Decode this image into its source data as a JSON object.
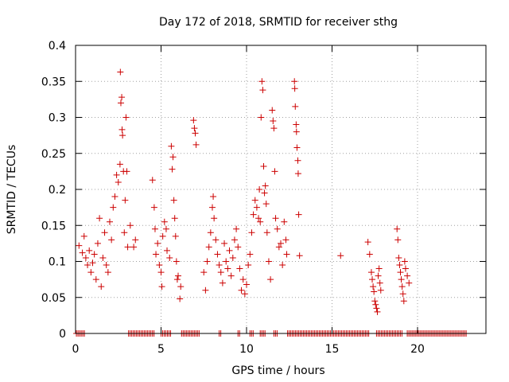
{
  "chart_data": {
    "type": "scatter",
    "title": "Day 172 of 2018, SRMTID for receiver sthg",
    "xlabel": "GPS time / hours",
    "ylabel": "SRMTID / TECUs",
    "xlim": [
      0,
      24
    ],
    "ylim": [
      0,
      0.4
    ],
    "x_ticks": [
      0,
      5,
      10,
      15,
      20
    ],
    "x_tick_labels": [
      "0",
      "5",
      "10",
      "15",
      "20"
    ],
    "y_ticks": [
      0,
      0.05,
      0.1,
      0.15,
      0.2,
      0.25,
      0.3,
      0.35,
      0.4
    ],
    "y_tick_labels": [
      "0",
      "0.05",
      "0.1",
      "0.15",
      "0.2",
      "0.25",
      "0.3",
      "0.35",
      "0.4"
    ],
    "grid": true,
    "marker": "plus",
    "color": "#cc0000",
    "series": [
      {
        "name": "SRMTID",
        "points": [
          [
            0.2,
            0.122
          ],
          [
            0.4,
            0.112
          ],
          [
            0.5,
            0.135
          ],
          [
            0.6,
            0.105
          ],
          [
            0.7,
            0.095
          ],
          [
            0.8,
            0.115
          ],
          [
            0.9,
            0.085
          ],
          [
            1.0,
            0.098
          ],
          [
            1.1,
            0.11
          ],
          [
            1.2,
            0.075
          ],
          [
            1.3,
            0.125
          ],
          [
            1.4,
            0.16
          ],
          [
            1.5,
            0.065
          ],
          [
            1.6,
            0.105
          ],
          [
            1.7,
            0.14
          ],
          [
            1.8,
            0.095
          ],
          [
            1.9,
            0.085
          ],
          [
            2.0,
            0.155
          ],
          [
            2.1,
            0.13
          ],
          [
            2.2,
            0.175
          ],
          [
            2.3,
            0.19
          ],
          [
            2.4,
            0.22
          ],
          [
            2.5,
            0.21
          ],
          [
            2.6,
            0.235
          ],
          [
            2.62,
            0.363
          ],
          [
            2.65,
            0.32
          ],
          [
            2.7,
            0.328
          ],
          [
            2.72,
            0.283
          ],
          [
            2.75,
            0.275
          ],
          [
            2.8,
            0.225
          ],
          [
            2.85,
            0.14
          ],
          [
            2.9,
            0.185
          ],
          [
            2.95,
            0.3
          ],
          [
            3.0,
            0.225
          ],
          [
            3.05,
            0.12
          ],
          [
            3.2,
            0.15
          ],
          [
            3.4,
            0.12
          ],
          [
            3.5,
            0.13
          ],
          [
            4.5,
            0.213
          ],
          [
            4.6,
            0.175
          ],
          [
            4.65,
            0.145
          ],
          [
            4.7,
            0.11
          ],
          [
            4.8,
            0.125
          ],
          [
            4.9,
            0.095
          ],
          [
            5.0,
            0.085
          ],
          [
            5.05,
            0.065
          ],
          [
            5.1,
            0.135
          ],
          [
            5.2,
            0.155
          ],
          [
            5.3,
            0.145
          ],
          [
            5.35,
            0.115
          ],
          [
            5.5,
            0.105
          ],
          [
            5.6,
            0.26
          ],
          [
            5.65,
            0.228
          ],
          [
            5.7,
            0.245
          ],
          [
            5.75,
            0.185
          ],
          [
            5.8,
            0.16
          ],
          [
            5.85,
            0.135
          ],
          [
            5.9,
            0.1
          ],
          [
            5.95,
            0.075
          ],
          [
            6.0,
            0.08
          ],
          [
            6.1,
            0.048
          ],
          [
            6.15,
            0.065
          ],
          [
            6.9,
            0.296
          ],
          [
            6.95,
            0.285
          ],
          [
            7.0,
            0.278
          ],
          [
            7.05,
            0.262
          ],
          [
            7.5,
            0.085
          ],
          [
            7.6,
            0.06
          ],
          [
            7.7,
            0.1
          ],
          [
            7.8,
            0.12
          ],
          [
            7.9,
            0.14
          ],
          [
            8.0,
            0.175
          ],
          [
            8.05,
            0.19
          ],
          [
            8.1,
            0.16
          ],
          [
            8.2,
            0.13
          ],
          [
            8.3,
            0.11
          ],
          [
            8.4,
            0.095
          ],
          [
            8.5,
            0.085
          ],
          [
            8.6,
            0.07
          ],
          [
            8.7,
            0.125
          ],
          [
            8.8,
            0.1
          ],
          [
            8.9,
            0.09
          ],
          [
            9.0,
            0.115
          ],
          [
            9.1,
            0.08
          ],
          [
            9.2,
            0.105
          ],
          [
            9.3,
            0.13
          ],
          [
            9.4,
            0.145
          ],
          [
            9.5,
            0.12
          ],
          [
            9.6,
            0.09
          ],
          [
            9.7,
            0.06
          ],
          [
            9.8,
            0.075
          ],
          [
            9.9,
            0.055
          ],
          [
            10.0,
            0.068
          ],
          [
            10.1,
            0.095
          ],
          [
            10.2,
            0.11
          ],
          [
            10.3,
            0.14
          ],
          [
            10.4,
            0.165
          ],
          [
            10.5,
            0.185
          ],
          [
            10.6,
            0.175
          ],
          [
            10.7,
            0.16
          ],
          [
            10.75,
            0.2
          ],
          [
            10.8,
            0.155
          ],
          [
            10.85,
            0.3
          ],
          [
            10.9,
            0.35
          ],
          [
            10.95,
            0.338
          ],
          [
            11.0,
            0.232
          ],
          [
            11.05,
            0.195
          ],
          [
            11.1,
            0.205
          ],
          [
            11.15,
            0.18
          ],
          [
            11.2,
            0.14
          ],
          [
            11.3,
            0.1
          ],
          [
            11.4,
            0.075
          ],
          [
            11.5,
            0.31
          ],
          [
            11.55,
            0.295
          ],
          [
            11.6,
            0.285
          ],
          [
            11.65,
            0.225
          ],
          [
            11.7,
            0.16
          ],
          [
            11.8,
            0.145
          ],
          [
            11.9,
            0.12
          ],
          [
            12.0,
            0.125
          ],
          [
            12.1,
            0.095
          ],
          [
            12.2,
            0.155
          ],
          [
            12.3,
            0.13
          ],
          [
            12.35,
            0.11
          ],
          [
            12.8,
            0.35
          ],
          [
            12.82,
            0.34
          ],
          [
            12.85,
            0.315
          ],
          [
            12.9,
            0.29
          ],
          [
            12.92,
            0.28
          ],
          [
            12.95,
            0.258
          ],
          [
            13.0,
            0.24
          ],
          [
            13.02,
            0.222
          ],
          [
            13.05,
            0.165
          ],
          [
            13.1,
            0.108
          ],
          [
            15.5,
            0.108
          ],
          [
            17.1,
            0.127
          ],
          [
            17.2,
            0.11
          ],
          [
            17.3,
            0.085
          ],
          [
            17.35,
            0.075
          ],
          [
            17.4,
            0.065
          ],
          [
            17.45,
            0.058
          ],
          [
            17.5,
            0.045
          ],
          [
            17.55,
            0.04
          ],
          [
            17.6,
            0.035
          ],
          [
            17.65,
            0.03
          ],
          [
            17.7,
            0.08
          ],
          [
            17.75,
            0.09
          ],
          [
            17.8,
            0.07
          ],
          [
            17.85,
            0.06
          ],
          [
            18.8,
            0.145
          ],
          [
            18.85,
            0.13
          ],
          [
            18.9,
            0.105
          ],
          [
            18.95,
            0.095
          ],
          [
            19.0,
            0.085
          ],
          [
            19.05,
            0.075
          ],
          [
            19.1,
            0.065
          ],
          [
            19.15,
            0.055
          ],
          [
            19.2,
            0.045
          ],
          [
            19.25,
            0.1
          ],
          [
            19.3,
            0.09
          ],
          [
            19.4,
            0.08
          ],
          [
            19.5,
            0.07
          ]
        ]
      }
    ],
    "zero_segments_hours": [
      [
        0.05,
        0.55
      ],
      [
        3.1,
        4.6
      ],
      [
        5.0,
        5.6
      ],
      [
        6.2,
        7.3
      ],
      [
        8.4,
        8.5
      ],
      [
        9.5,
        9.6
      ],
      [
        10.2,
        10.4
      ],
      [
        10.8,
        11.1
      ],
      [
        11.6,
        11.8
      ],
      [
        12.4,
        17.2
      ],
      [
        17.6,
        19.1
      ],
      [
        19.4,
        22.9
      ]
    ]
  }
}
